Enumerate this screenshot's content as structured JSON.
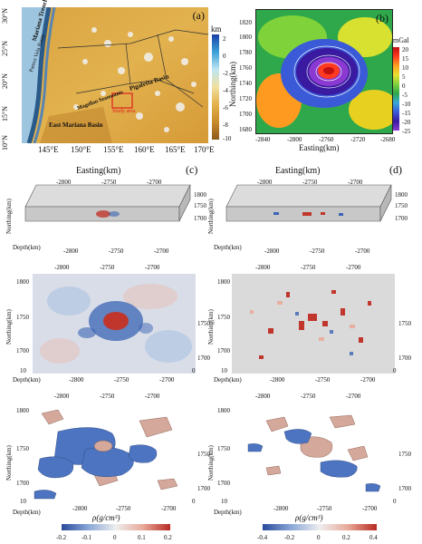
{
  "panel_a": {
    "label": "(a)",
    "unit": "km",
    "colorbar_ticks": [
      "2",
      "0",
      "-2",
      "-4",
      "-6",
      "-8",
      "-10"
    ],
    "lat_ticks": [
      "30°N",
      "25°N",
      "20°N",
      "15°N",
      "10°N"
    ],
    "lon_ticks": [
      "145°E",
      "150°E",
      "155°E",
      "160°E",
      "165°E",
      "170°E"
    ],
    "features": [
      "Mariana Trench",
      "Parece Vela Basin",
      "East Mariana Basin",
      "Pigafetta Basin",
      "Magellan Seamounts",
      "Study area"
    ]
  },
  "panel_b": {
    "label": "(b)",
    "unit": "mGal",
    "colorbar_ticks": [
      "20",
      "15",
      "10",
      "5",
      "0",
      "-5",
      "-10",
      "-15",
      "-20",
      "-25"
    ],
    "ylabel": "Northing(km)",
    "xlabel": "Easting(km)",
    "y_ticks": [
      "1820",
      "1800",
      "1780",
      "1760",
      "1740",
      "1720",
      "1700",
      "1680"
    ],
    "x_ticks": [
      "-2840",
      "-2800",
      "-2760",
      "-2720",
      "-2680"
    ]
  },
  "panel_c": {
    "label": "(c)",
    "easting_title": "Easting(km)",
    "easting_ticks": [
      "-2800",
      "-2750",
      "-2700"
    ],
    "northing_label": "Northing(km)",
    "northing_ticks": [
      "1800",
      "1750",
      "1700"
    ],
    "depth_label": "Depth(km)",
    "depth_ticks": [
      "10",
      "0"
    ],
    "colorbar_label": "ρ(g/cm³)",
    "colorbar_ticks": [
      "-0.2",
      "-0.1",
      "0",
      "0.1",
      "0.2"
    ]
  },
  "panel_d": {
    "label": "(d)",
    "easting_title": "Easting(km)",
    "easting_ticks": [
      "-2800",
      "-2750",
      "-2700"
    ],
    "northing_label": "Northing(km)",
    "northing_ticks": [
      "1800",
      "1750",
      "1700"
    ],
    "depth_label": "Depth(km)",
    "depth_ticks": [
      "10",
      "0"
    ],
    "colorbar_label": "ρ(g/cm³)",
    "colorbar_ticks": [
      "-0.4",
      "-0.2",
      "0",
      "0.2",
      "0.4"
    ]
  },
  "colors": {
    "positive": "#c0362c",
    "negative": "#3b64b4",
    "neutral": "#d6d6d6"
  }
}
